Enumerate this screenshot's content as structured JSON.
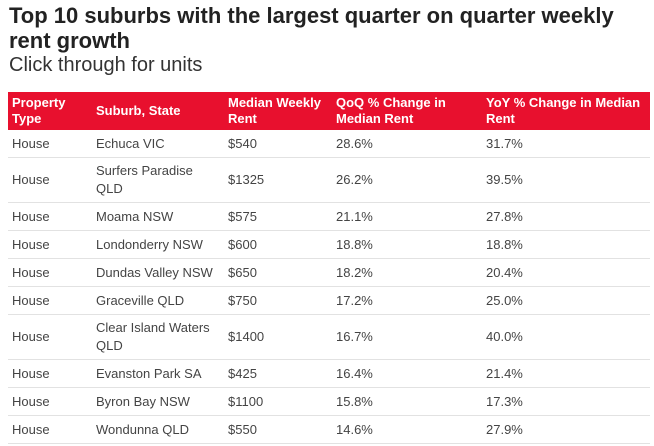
{
  "header": {
    "title": "Top 10 suburbs with the largest quarter on quarter weekly rent growth",
    "subtitle": "Click through for units"
  },
  "table": {
    "columns": [
      "Property Type",
      "Suburb, State",
      "Median Weekly Rent",
      "QoQ % Change in Median Rent",
      "YoY % Change in Median Rent"
    ],
    "rows": [
      [
        "House",
        "Echuca VIC",
        "$540",
        "28.6%",
        "31.7%"
      ],
      [
        "House",
        "Surfers Paradise QLD",
        "$1325",
        "26.2%",
        "39.5%"
      ],
      [
        "House",
        "Moama NSW",
        "$575",
        "21.1%",
        "27.8%"
      ],
      [
        "House",
        "Londonderry NSW",
        "$600",
        "18.8%",
        "18.8%"
      ],
      [
        "House",
        "Dundas Valley NSW",
        "$650",
        "18.2%",
        "20.4%"
      ],
      [
        "House",
        "Graceville QLD",
        "$750",
        "17.2%",
        "25.0%"
      ],
      [
        "House",
        "Clear Island Waters QLD",
        "$1400",
        "16.7%",
        "40.0%"
      ],
      [
        "House",
        "Evanston Park SA",
        "$425",
        "16.4%",
        "21.4%"
      ],
      [
        "House",
        "Byron Bay NSW",
        "$1100",
        "15.8%",
        "17.3%"
      ],
      [
        "House",
        "Wondunna QLD",
        "$550",
        "14.6%",
        "27.9%"
      ]
    ]
  }
}
